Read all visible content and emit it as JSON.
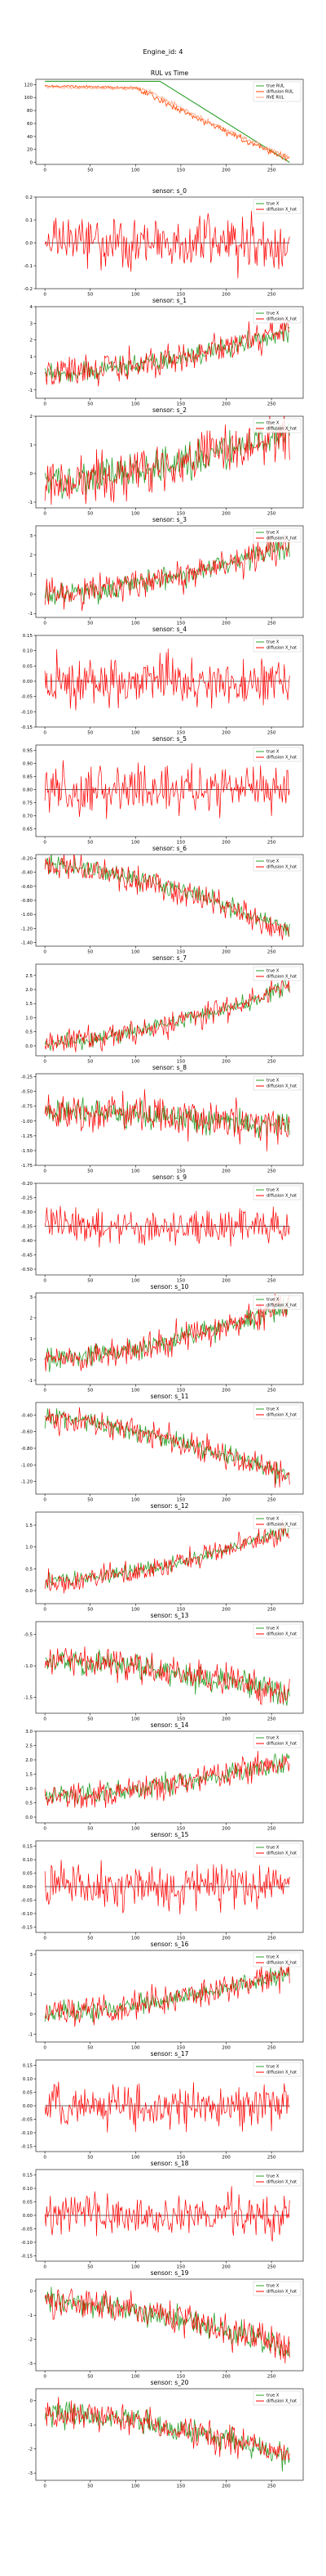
{
  "figure": {
    "title": "Engine_id: 4"
  },
  "colors": {
    "true": "#2ca02c",
    "pred_rul": "#ff4500",
    "diffusion": "#ff0000",
    "flat": "#333333",
    "axes": "#000000"
  },
  "chart_data": [
    {
      "type": "line",
      "title": "RUL vs Time",
      "xlim": [
        -10,
        285
      ],
      "ylim": [
        -3,
        128
      ],
      "xticks": [
        0,
        50,
        100,
        150,
        200,
        250
      ],
      "yticks": [
        0,
        20,
        40,
        60,
        80,
        100,
        120
      ],
      "legend": "top-right",
      "series": [
        {
          "name": "true RUL",
          "kind": "rul_true",
          "start": 0,
          "end": 270,
          "plateau": 125,
          "knee": 127,
          "final": 0
        },
        {
          "name": "diffusion RUL",
          "kind": "rul_diff",
          "start": 0,
          "end": 270,
          "base": 118,
          "knee": 100,
          "final": 5
        },
        {
          "name": "RVE RUL",
          "kind": "rul_rve",
          "start": 0,
          "end": 270,
          "base": 116,
          "knee": 110,
          "final": 8
        }
      ]
    },
    {
      "type": "line",
      "title": "sensor: s_0",
      "xlim": [
        -10,
        285
      ],
      "ylim": [
        -0.2,
        0.2
      ],
      "xticks": [
        0,
        50,
        100,
        150,
        200,
        250
      ],
      "yticks": [
        -0.2,
        -0.1,
        0.0,
        0.1,
        0.2
      ],
      "legend": "top-right",
      "series": [
        {
          "name": "true X",
          "kind": "true",
          "trend": [
            0,
            0
          ],
          "noise": 0.0
        },
        {
          "name": "diffusion X_hat",
          "kind": "pred",
          "trend": [
            0,
            0
          ],
          "noise": 0.1
        }
      ]
    },
    {
      "type": "line",
      "title": "sensor: s_1",
      "xlim": [
        -10,
        285
      ],
      "ylim": [
        -1.5,
        4
      ],
      "xticks": [
        0,
        50,
        100,
        150,
        200,
        250
      ],
      "yticks": [
        -1,
        0,
        1,
        2,
        3,
        4
      ],
      "legend": "top-right",
      "series": [
        {
          "name": "true X",
          "kind": "true",
          "trend": [
            0,
            2.5
          ],
          "noise": 0.5
        },
        {
          "name": "diffusion X_hat",
          "kind": "pred",
          "trend": [
            0,
            2.5
          ],
          "noise": 0.8
        }
      ]
    },
    {
      "type": "line",
      "title": "sensor: s_2",
      "xlim": [
        -10,
        285
      ],
      "ylim": [
        -1.2,
        2
      ],
      "xticks": [
        0,
        50,
        100,
        150,
        200,
        250
      ],
      "yticks": [
        -1,
        0,
        1,
        2
      ],
      "legend": "top-right",
      "series": [
        {
          "name": "true X",
          "kind": "true",
          "trend": [
            -0.3,
            1.5
          ],
          "noise": 0.5
        },
        {
          "name": "diffusion X_hat",
          "kind": "pred",
          "trend": [
            -0.3,
            1.5
          ],
          "noise": 0.7
        }
      ]
    },
    {
      "type": "line",
      "title": "sensor: s_3",
      "xlim": [
        -10,
        285
      ],
      "ylim": [
        -1.2,
        3.5
      ],
      "xticks": [
        0,
        50,
        100,
        150,
        200,
        250
      ],
      "yticks": [
        -1,
        0,
        1,
        2,
        3
      ],
      "legend": "top-right",
      "series": [
        {
          "name": "true X",
          "kind": "true",
          "trend": [
            0,
            2.5
          ],
          "noise": 0.5
        },
        {
          "name": "diffusion X_hat",
          "kind": "pred",
          "trend": [
            0,
            2.5
          ],
          "noise": 0.7
        }
      ]
    },
    {
      "type": "line",
      "title": "sensor: s_4",
      "xlim": [
        -10,
        285
      ],
      "ylim": [
        -0.15,
        0.15
      ],
      "xticks": [
        0,
        50,
        100,
        150,
        200,
        250
      ],
      "yticks": [
        -0.15,
        -0.1,
        -0.05,
        0.0,
        0.05,
        0.1,
        0.15
      ],
      "legend": "top-right",
      "series": [
        {
          "name": "true X",
          "kind": "true",
          "trend": [
            0,
            0
          ],
          "noise": 0.0
        },
        {
          "name": "diffusion X_hat",
          "kind": "pred",
          "trend": [
            0,
            0
          ],
          "noise": 0.07
        }
      ]
    },
    {
      "type": "line",
      "title": "sensor: s_5",
      "xlim": [
        -10,
        285
      ],
      "ylim": [
        0.62,
        0.97
      ],
      "xticks": [
        0,
        50,
        100,
        150,
        200,
        250
      ],
      "yticks": [
        0.65,
        0.7,
        0.75,
        0.8,
        0.85,
        0.9,
        0.95
      ],
      "legend": "top-right",
      "series": [
        {
          "name": "true X",
          "kind": "true",
          "trend": [
            0.8,
            0.8
          ],
          "noise": 0.0
        },
        {
          "name": "diffusion X_hat",
          "kind": "pred",
          "trend": [
            0.8,
            0.8
          ],
          "noise": 0.08
        }
      ]
    },
    {
      "type": "line",
      "title": "sensor: s_6",
      "xlim": [
        -10,
        285
      ],
      "ylim": [
        -1.45,
        -0.15
      ],
      "xticks": [
        0,
        50,
        100,
        150,
        200,
        250
      ],
      "yticks": [
        -1.4,
        -1.2,
        -1.0,
        -0.8,
        -0.6,
        -0.4,
        -0.2
      ],
      "legend": "top-right",
      "series": [
        {
          "name": "true X",
          "kind": "true",
          "trend": [
            -0.3,
            -1.25
          ],
          "noise": 0.12
        },
        {
          "name": "diffusion X_hat",
          "kind": "pred",
          "trend": [
            -0.3,
            -1.25
          ],
          "noise": 0.16
        }
      ]
    },
    {
      "type": "line",
      "title": "sensor: s_7",
      "xlim": [
        -10,
        285
      ],
      "ylim": [
        -0.35,
        2.9
      ],
      "xticks": [
        0,
        50,
        100,
        150,
        200,
        250
      ],
      "yticks": [
        0.0,
        0.5,
        1.0,
        1.5,
        2.0,
        2.5
      ],
      "legend": "top-right",
      "series": [
        {
          "name": "true X",
          "kind": "true",
          "trend": [
            0.1,
            2.1
          ],
          "noise": 0.25
        },
        {
          "name": "diffusion X_hat",
          "kind": "pred",
          "trend": [
            0.1,
            2.1
          ],
          "noise": 0.35
        }
      ]
    },
    {
      "type": "line",
      "title": "sensor: s_8",
      "xlim": [
        -10,
        285
      ],
      "ylim": [
        -1.75,
        -0.2
      ],
      "xticks": [
        0,
        50,
        100,
        150,
        200,
        250
      ],
      "yticks": [
        -1.75,
        -1.5,
        -1.25,
        -1.0,
        -0.75,
        -0.5,
        -0.25
      ],
      "legend": "top-right",
      "series": [
        {
          "name": "true X",
          "kind": "true",
          "trend": [
            -0.85,
            -1.1
          ],
          "noise": 0.2
        },
        {
          "name": "diffusion X_hat",
          "kind": "pred",
          "trend": [
            -0.85,
            -1.1
          ],
          "noise": 0.28
        }
      ]
    },
    {
      "type": "line",
      "title": "sensor: s_9",
      "xlim": [
        -10,
        285
      ],
      "ylim": [
        -0.52,
        -0.2
      ],
      "xticks": [
        0,
        50,
        100,
        150,
        200,
        250
      ],
      "yticks": [
        -0.5,
        -0.45,
        -0.4,
        -0.35,
        -0.3,
        -0.25,
        -0.2
      ],
      "legend": "top-right",
      "series": [
        {
          "name": "true X",
          "kind": "true",
          "trend": [
            -0.35,
            -0.35
          ],
          "noise": 0.0
        },
        {
          "name": "diffusion X_hat",
          "kind": "pred",
          "trend": [
            -0.35,
            -0.35
          ],
          "noise": 0.05
        }
      ]
    },
    {
      "type": "line",
      "title": "sensor: s_10",
      "xlim": [
        -10,
        285
      ],
      "ylim": [
        -1.2,
        3.2
      ],
      "xticks": [
        0,
        50,
        100,
        150,
        200,
        250
      ],
      "yticks": [
        -1,
        0,
        1,
        2,
        3
      ],
      "legend": "top-right",
      "series": [
        {
          "name": "true X",
          "kind": "true",
          "trend": [
            0,
            2.6
          ],
          "noise": 0.45
        },
        {
          "name": "diffusion X_hat",
          "kind": "pred",
          "trend": [
            0,
            2.6
          ],
          "noise": 0.6
        }
      ]
    },
    {
      "type": "line",
      "title": "sensor: s_11",
      "xlim": [
        -10,
        285
      ],
      "ylim": [
        -1.35,
        -0.25
      ],
      "xticks": [
        0,
        50,
        100,
        150,
        200,
        250
      ],
      "yticks": [
        -1.2,
        -1.0,
        -0.8,
        -0.6,
        -0.4
      ],
      "legend": "top-right",
      "series": [
        {
          "name": "true X",
          "kind": "true",
          "trend": [
            -0.45,
            -1.15
          ],
          "noise": 0.1
        },
        {
          "name": "diffusion X_hat",
          "kind": "pred",
          "trend": [
            -0.45,
            -1.15
          ],
          "noise": 0.14
        }
      ]
    },
    {
      "type": "line",
      "title": "sensor: s_12",
      "xlim": [
        -10,
        285
      ],
      "ylim": [
        -0.3,
        1.8
      ],
      "xticks": [
        0,
        50,
        100,
        150,
        200,
        250
      ],
      "yticks": [
        0.0,
        0.5,
        1.0,
        1.5
      ],
      "legend": "top-right",
      "series": [
        {
          "name": "true X",
          "kind": "true",
          "trend": [
            0.2,
            1.4
          ],
          "noise": 0.15
        },
        {
          "name": "diffusion X_hat",
          "kind": "pred",
          "trend": [
            0.2,
            1.4
          ],
          "noise": 0.22
        }
      ]
    },
    {
      "type": "line",
      "title": "sensor: s_13",
      "xlim": [
        -10,
        285
      ],
      "ylim": [
        -1.75,
        -0.3
      ],
      "xticks": [
        0,
        50,
        100,
        150,
        200,
        250
      ],
      "yticks": [
        -1.5,
        -1.0,
        -0.5
      ],
      "legend": "top-right",
      "series": [
        {
          "name": "true X",
          "kind": "true",
          "trend": [
            -0.9,
            -1.45
          ],
          "noise": 0.18
        },
        {
          "name": "diffusion X_hat",
          "kind": "pred",
          "trend": [
            -0.9,
            -1.45
          ],
          "noise": 0.22
        }
      ]
    },
    {
      "type": "line",
      "title": "sensor: s_14",
      "xlim": [
        -10,
        285
      ],
      "ylim": [
        -0.2,
        3.0
      ],
      "xticks": [
        0,
        50,
        100,
        150,
        200,
        250
      ],
      "yticks": [
        0.0,
        0.5,
        1.0,
        1.5,
        2.0,
        2.5,
        3.0
      ],
      "legend": "top-right",
      "series": [
        {
          "name": "true X",
          "kind": "true",
          "trend": [
            0.7,
            2.0
          ],
          "noise": 0.3
        },
        {
          "name": "diffusion X_hat",
          "kind": "pred",
          "trend": [
            0.7,
            2.0
          ],
          "noise": 0.4
        }
      ]
    },
    {
      "type": "line",
      "title": "sensor: s_15",
      "xlim": [
        -10,
        285
      ],
      "ylim": [
        -0.17,
        0.17
      ],
      "xticks": [
        0,
        50,
        100,
        150,
        200,
        250
      ],
      "yticks": [
        -0.15,
        -0.1,
        -0.05,
        0.0,
        0.05,
        0.1,
        0.15
      ],
      "legend": "top-right",
      "series": [
        {
          "name": "true X",
          "kind": "true",
          "trend": [
            0,
            0
          ],
          "noise": 0.0
        },
        {
          "name": "diffusion X_hat",
          "kind": "pred",
          "trend": [
            0,
            0
          ],
          "noise": 0.07
        }
      ]
    },
    {
      "type": "line",
      "title": "sensor: s_16",
      "xlim": [
        -10,
        285
      ],
      "ylim": [
        -1.4,
        3.2
      ],
      "xticks": [
        0,
        50,
        100,
        150,
        200,
        250
      ],
      "yticks": [
        -1,
        0,
        1,
        2,
        3
      ],
      "legend": "top-right",
      "series": [
        {
          "name": "true X",
          "kind": "true",
          "trend": [
            0,
            2.1
          ],
          "noise": 0.45
        },
        {
          "name": "diffusion X_hat",
          "kind": "pred",
          "trend": [
            0,
            2.1
          ],
          "noise": 0.6
        }
      ]
    },
    {
      "type": "line",
      "title": "sensor: s_17",
      "xlim": [
        -10,
        285
      ],
      "ylim": [
        -0.17,
        0.17
      ],
      "xticks": [
        0,
        50,
        100,
        150,
        200,
        250
      ],
      "yticks": [
        -0.15,
        -0.1,
        -0.05,
        0.0,
        0.05,
        0.1,
        0.15
      ],
      "legend": "top-right",
      "series": [
        {
          "name": "true X",
          "kind": "true",
          "trend": [
            0,
            0
          ],
          "noise": 0.0
        },
        {
          "name": "diffusion X_hat",
          "kind": "pred",
          "trend": [
            0,
            0
          ],
          "noise": 0.07
        }
      ]
    },
    {
      "type": "line",
      "title": "sensor: s_18",
      "xlim": [
        -10,
        285
      ],
      "ylim": [
        -0.17,
        0.17
      ],
      "xticks": [
        0,
        50,
        100,
        150,
        200,
        250
      ],
      "yticks": [
        -0.15,
        -0.1,
        -0.05,
        0.0,
        0.05,
        0.1,
        0.15
      ],
      "legend": "top-right",
      "series": [
        {
          "name": "true X",
          "kind": "true",
          "trend": [
            0,
            0
          ],
          "noise": 0.0
        },
        {
          "name": "diffusion X_hat",
          "kind": "pred",
          "trend": [
            0,
            0
          ],
          "noise": 0.07
        }
      ]
    },
    {
      "type": "line",
      "title": "sensor: s_19",
      "xlim": [
        -10,
        285
      ],
      "ylim": [
        -3.3,
        0.5
      ],
      "xticks": [
        0,
        50,
        100,
        150,
        200,
        250
      ],
      "yticks": [
        -3,
        -2,
        -1,
        0
      ],
      "legend": "top-right",
      "series": [
        {
          "name": "true X",
          "kind": "true",
          "trend": [
            -0.4,
            -2.4
          ],
          "noise": 0.45
        },
        {
          "name": "diffusion X_hat",
          "kind": "pred",
          "trend": [
            -0.4,
            -2.4
          ],
          "noise": 0.55
        }
      ]
    },
    {
      "type": "line",
      "title": "sensor: s_20",
      "xlim": [
        -10,
        285
      ],
      "ylim": [
        -3.3,
        0.5
      ],
      "xticks": [
        0,
        50,
        100,
        150,
        200,
        250
      ],
      "yticks": [
        -3,
        -2,
        -1,
        0
      ],
      "legend": "top-right",
      "series": [
        {
          "name": "true X",
          "kind": "true",
          "trend": [
            -0.5,
            -2.3
          ],
          "noise": 0.45
        },
        {
          "name": "diffusion X_hat",
          "kind": "pred",
          "trend": [
            -0.5,
            -2.3
          ],
          "noise": 0.55
        }
      ]
    }
  ]
}
